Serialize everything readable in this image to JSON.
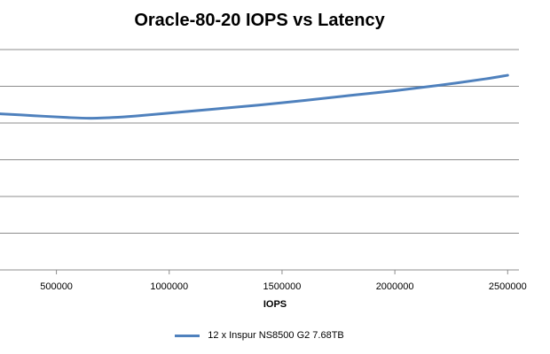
{
  "chart_data": {
    "type": "line",
    "title": "Oracle-80-20 IOPS vs Latency",
    "xlabel": "IOPS",
    "ylabel": "",
    "x_ticks": [
      500000,
      1000000,
      1500000,
      2000000,
      2500000
    ],
    "xlim": [
      250000,
      2550000
    ],
    "ylim": [
      0,
      6
    ],
    "grid": true,
    "legend_position": "bottom",
    "series": [
      {
        "name": "12 x Inspur NS8500 G2 7.68TB",
        "color": "#4f81bd",
        "x": [
          250000,
          400000,
          550000,
          650000,
          750000,
          850000,
          1000000,
          1200000,
          1500000,
          1800000,
          2000000,
          2200000,
          2400000,
          2500000
        ],
        "y": [
          4.25,
          4.2,
          4.15,
          4.13,
          4.15,
          4.19,
          4.27,
          4.38,
          4.55,
          4.75,
          4.88,
          5.03,
          5.2,
          5.3
        ]
      }
    ]
  }
}
